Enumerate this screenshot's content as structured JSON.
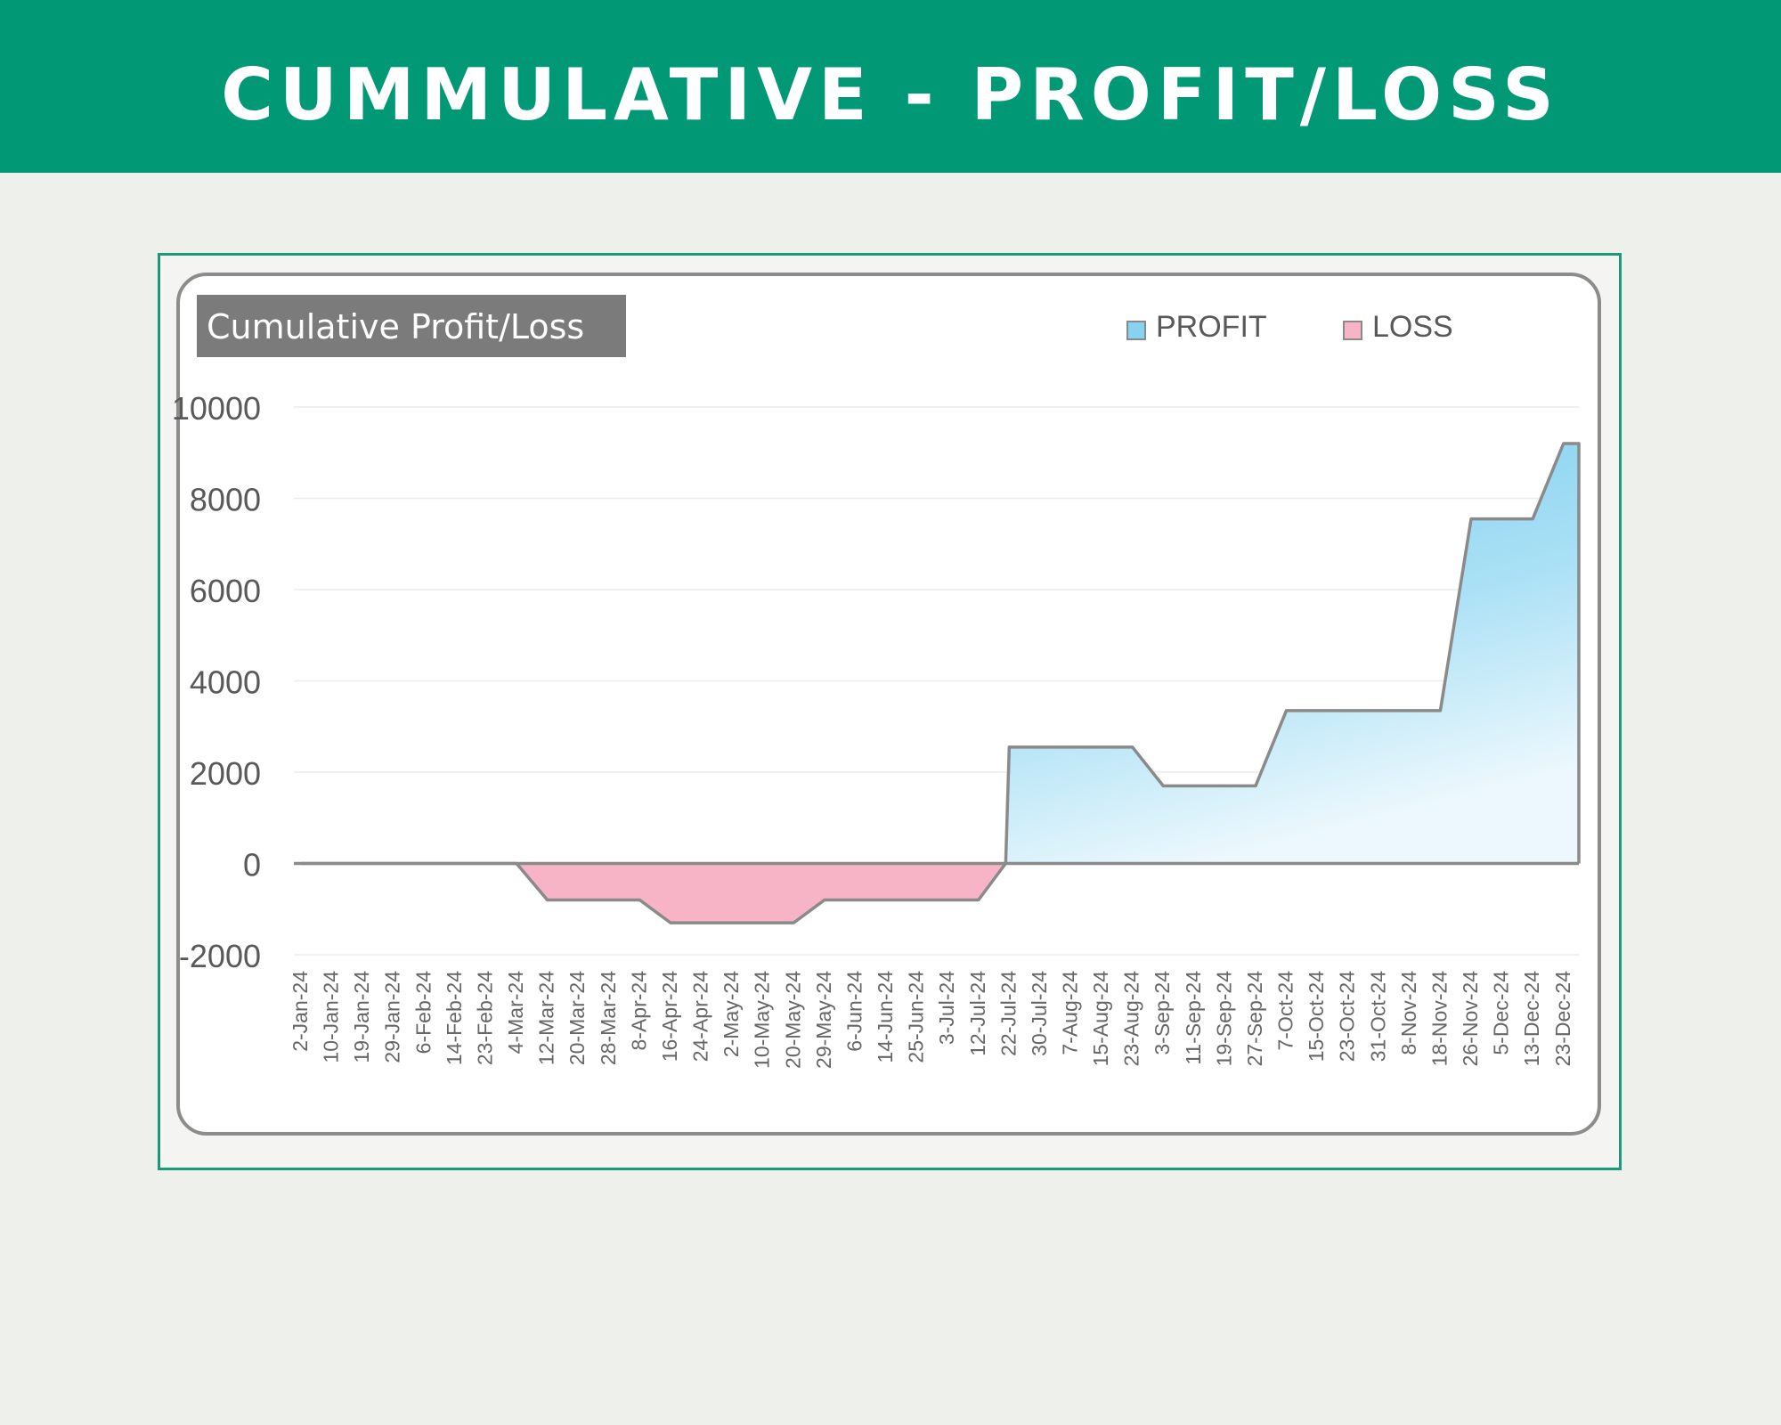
{
  "banner": {
    "title": "CUMMULATIVE - PROFIT/LOSS"
  },
  "colors": {
    "banner_bg": "#019876",
    "page_bg": "#eef0ec",
    "frame_border": "#1a9a78",
    "profit_fill": "#87d3ef",
    "loss_fill": "#f8b4c7",
    "line": "#8a8a8a",
    "title_box": "#7b7b7b"
  },
  "chart_data": {
    "type": "area",
    "title": "Cumulative Profit/Loss",
    "xlabel": "",
    "ylabel": "",
    "ylim": [
      -2000,
      10000
    ],
    "yticks": [
      10000,
      8000,
      6000,
      4000,
      2000,
      0,
      -2000
    ],
    "grid": true,
    "legend_position": "top-right",
    "categories": [
      "2-Jan-24",
      "10-Jan-24",
      "19-Jan-24",
      "29-Jan-24",
      "6-Feb-24",
      "14-Feb-24",
      "23-Feb-24",
      "4-Mar-24",
      "12-Mar-24",
      "20-Mar-24",
      "28-Mar-24",
      "8-Apr-24",
      "16-Apr-24",
      "24-Apr-24",
      "2-May-24",
      "10-May-24",
      "20-May-24",
      "29-May-24",
      "6-Jun-24",
      "14-Jun-24",
      "25-Jun-24",
      "3-Jul-24",
      "12-Jul-24",
      "22-Jul-24",
      "30-Jul-24",
      "7-Aug-24",
      "15-Aug-24",
      "23-Aug-24",
      "3-Sep-24",
      "11-Sep-24",
      "19-Sep-24",
      "27-Sep-24",
      "7-Oct-24",
      "15-Oct-24",
      "23-Oct-24",
      "31-Oct-24",
      "8-Nov-24",
      "18-Nov-24",
      "26-Nov-24",
      "5-Dec-24",
      "13-Dec-24",
      "23-Dec-24"
    ],
    "series": [
      {
        "name": "PROFIT",
        "color": "#87d3ef"
      },
      {
        "name": "LOSS",
        "color": "#f8b4c7"
      }
    ],
    "cumulative": {
      "x": [
        "2-Jan-24",
        "4-Mar-24",
        "12-Mar-24",
        "8-Apr-24",
        "16-Apr-24",
        "20-May-24",
        "29-May-24",
        "12-Jul-24",
        "22-Jul-24",
        "23-Aug-24",
        "3-Sep-24",
        "27-Sep-24",
        "7-Oct-24",
        "18-Nov-24",
        "26-Nov-24",
        "13-Dec-24",
        "23-Dec-24",
        "23-Dec-24"
      ],
      "y": [
        0,
        0,
        -800,
        -800,
        -1300,
        -1300,
        -800,
        -800,
        2550,
        2550,
        1700,
        1700,
        3350,
        3350,
        7550,
        7550,
        9200,
        9200
      ]
    }
  }
}
